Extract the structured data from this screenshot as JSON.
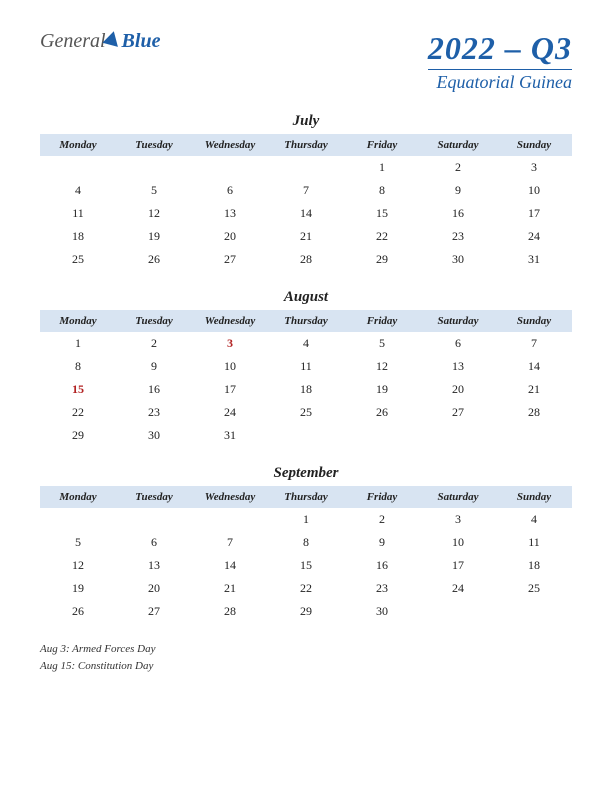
{
  "logo": {
    "part1": "General",
    "part2": "Blue"
  },
  "title": {
    "main": "2022 – Q3",
    "sub": "Equatorial Guinea"
  },
  "day_headers": [
    "Monday",
    "Tuesday",
    "Wednesday",
    "Thursday",
    "Friday",
    "Saturday",
    "Sunday"
  ],
  "months": [
    {
      "name": "July",
      "weeks": [
        [
          "",
          "",
          "",
          "",
          "1",
          "2",
          "3"
        ],
        [
          "4",
          "5",
          "6",
          "7",
          "8",
          "9",
          "10"
        ],
        [
          "11",
          "12",
          "13",
          "14",
          "15",
          "16",
          "17"
        ],
        [
          "18",
          "19",
          "20",
          "21",
          "22",
          "23",
          "24"
        ],
        [
          "25",
          "26",
          "27",
          "28",
          "29",
          "30",
          "31"
        ]
      ],
      "holidays": []
    },
    {
      "name": "August",
      "weeks": [
        [
          "1",
          "2",
          "3",
          "4",
          "5",
          "6",
          "7"
        ],
        [
          "8",
          "9",
          "10",
          "11",
          "12",
          "13",
          "14"
        ],
        [
          "15",
          "16",
          "17",
          "18",
          "19",
          "20",
          "21"
        ],
        [
          "22",
          "23",
          "24",
          "25",
          "26",
          "27",
          "28"
        ],
        [
          "29",
          "30",
          "31",
          "",
          "",
          "",
          ""
        ]
      ],
      "holidays": [
        "3",
        "15"
      ]
    },
    {
      "name": "September",
      "weeks": [
        [
          "",
          "",
          "",
          "1",
          "2",
          "3",
          "4"
        ],
        [
          "5",
          "6",
          "7",
          "8",
          "9",
          "10",
          "11"
        ],
        [
          "12",
          "13",
          "14",
          "15",
          "16",
          "17",
          "18"
        ],
        [
          "19",
          "20",
          "21",
          "22",
          "23",
          "24",
          "25"
        ],
        [
          "26",
          "27",
          "28",
          "29",
          "30",
          "",
          ""
        ]
      ],
      "holidays": []
    }
  ],
  "notes": [
    "Aug 3: Armed Forces Day",
    "Aug 15: Constitution Day"
  ],
  "colors": {
    "header_bg": "#d8e4f2",
    "brand": "#1e5fa8",
    "holiday": "#b22222",
    "text": "#222222",
    "page_bg": "#ffffff"
  }
}
